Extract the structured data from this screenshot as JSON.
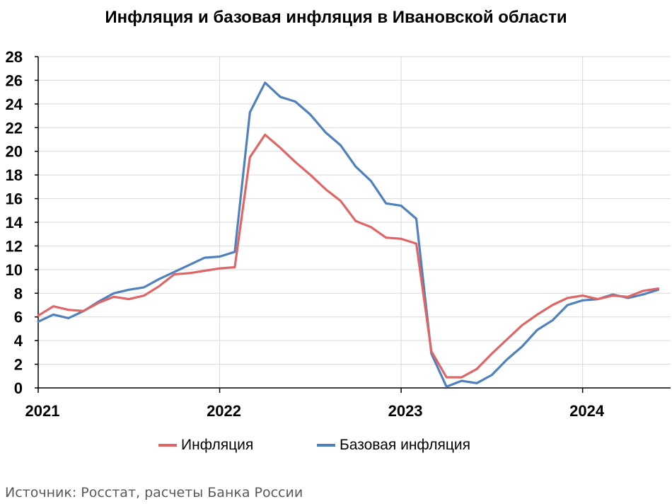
{
  "chart_data": {
    "type": "line",
    "title": "Инфляция и базовая инфляция в Ивановской области",
    "xlabel": "",
    "ylabel": "",
    "ylim": [
      0,
      28
    ],
    "yticks": [
      0,
      2,
      4,
      6,
      8,
      10,
      12,
      14,
      16,
      18,
      20,
      22,
      24,
      26,
      28
    ],
    "xticks": [
      "2021",
      "2022",
      "2023",
      "2024"
    ],
    "grid": true,
    "legend": "bottom",
    "x": [
      "2021-01",
      "2021-02",
      "2021-03",
      "2021-04",
      "2021-05",
      "2021-06",
      "2021-07",
      "2021-08",
      "2021-09",
      "2021-10",
      "2021-11",
      "2021-12",
      "2022-01",
      "2022-02",
      "2022-03",
      "2022-04",
      "2022-05",
      "2022-06",
      "2022-07",
      "2022-08",
      "2022-09",
      "2022-10",
      "2022-11",
      "2022-12",
      "2023-01",
      "2023-02",
      "2023-03",
      "2023-04",
      "2023-05",
      "2023-06",
      "2023-07",
      "2023-08",
      "2023-09",
      "2023-10",
      "2023-11",
      "2023-12",
      "2024-01",
      "2024-02",
      "2024-03",
      "2024-04",
      "2024-05",
      "2024-06"
    ],
    "series": [
      {
        "name": "Инфляция",
        "color": "#e06666",
        "values": [
          6.1,
          6.9,
          6.6,
          6.5,
          7.2,
          7.7,
          7.5,
          7.8,
          8.6,
          9.6,
          9.7,
          9.9,
          10.1,
          10.2,
          19.5,
          21.4,
          20.3,
          19.1,
          18.0,
          16.8,
          15.8,
          14.1,
          13.6,
          12.7,
          12.6,
          12.2,
          3.1,
          0.9,
          0.9,
          1.6,
          2.9,
          4.1,
          5.3,
          6.2,
          7.0,
          7.6,
          7.8,
          7.5,
          7.8,
          7.7,
          8.2,
          8.4
        ]
      },
      {
        "name": "Базовая инфляция",
        "color": "#4f81bd",
        "values": [
          5.6,
          6.2,
          5.9,
          6.5,
          7.3,
          8.0,
          8.3,
          8.5,
          9.2,
          9.8,
          10.4,
          11.0,
          11.1,
          11.5,
          23.3,
          25.8,
          24.6,
          24.2,
          23.1,
          21.6,
          20.5,
          18.7,
          17.5,
          15.6,
          15.4,
          14.3,
          2.9,
          0.1,
          0.6,
          0.4,
          1.1,
          2.4,
          3.5,
          4.9,
          5.7,
          7.0,
          7.4,
          7.5,
          7.9,
          7.6,
          7.9,
          8.3
        ]
      }
    ]
  },
  "source_note": "Источник: Росстат, расчеты Банка России"
}
